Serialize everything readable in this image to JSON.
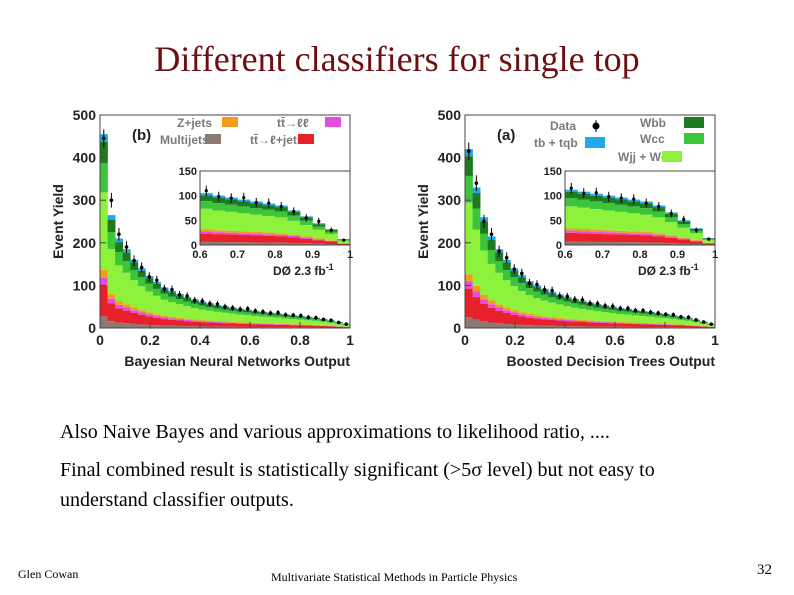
{
  "slide": {
    "title": "Different classifiers for single top",
    "text_line1": "Also Naive Bayes and various approximations to likelihood ratio, ....",
    "text_line2_pre": "Final combined result is statistically significant (>5",
    "text_line2_sigma": "σ",
    "text_line2_post": " level) but not easy to understand classifier outputs.",
    "footer_left": "Glen Cowan",
    "footer_center": "Multivariate Statistical Methods in Particle Physics",
    "page_number": "32"
  },
  "chart_data": [
    {
      "type": "bar",
      "stacked": true,
      "panel_label": "(b)",
      "xlabel": "Bayesian Neural Networks Output",
      "ylabel": "Event Yield",
      "xlim": [
        0,
        1
      ],
      "ylim": [
        0,
        500
      ],
      "yticks": [
        "0",
        "100",
        "200",
        "300",
        "400",
        "500"
      ],
      "xticks": [
        "0",
        "0.2",
        "0.4",
        "0.6",
        "0.8",
        "1"
      ],
      "lumi_label": "DØ  2.3 fb",
      "lumi_sup": "-1",
      "legend": [
        {
          "name": "Z+jets",
          "color": "#f39a1f"
        },
        {
          "name": "tt̄→ℓℓ",
          "color": "#e64ce0"
        },
        {
          "name": "Multijets",
          "color": "#8c7a72"
        },
        {
          "name": "tt̄→ℓ+jets",
          "color": "#e8202a"
        }
      ],
      "total_bkg_shape": [
        455,
        265,
        210,
        185,
        160,
        140,
        122,
        108,
        95,
        87,
        80,
        73,
        67,
        62,
        58,
        54,
        51,
        48,
        45,
        43,
        40,
        38,
        36,
        34,
        32,
        30,
        28,
        26,
        24,
        21,
        18,
        14,
        10
      ],
      "data_points": [
        445,
        300,
        220,
        190,
        158,
        142,
        120,
        112,
        92,
        90,
        78,
        75,
        65,
        63,
        57,
        56,
        50,
        47,
        44,
        45,
        40,
        38,
        35,
        36,
        31,
        30,
        29,
        25,
        24,
        20,
        18,
        13,
        9
      ],
      "inset": {
        "xlim": [
          0.6,
          1
        ],
        "ylim": [
          0,
          150
        ],
        "yticks": [
          "0",
          "50",
          "100",
          "150"
        ],
        "xticks": [
          "0.6",
          "0.7",
          "0.8",
          "0.9",
          "1"
        ],
        "total_bkg_shape": [
          105,
          100,
          96,
          92,
          88,
          84,
          80,
          70,
          58,
          44,
          32,
          12
        ],
        "data_points": [
          110,
          98,
          95,
          96,
          86,
          85,
          78,
          68,
          55,
          48,
          30,
          10
        ]
      }
    },
    {
      "type": "bar",
      "stacked": true,
      "panel_label": "(a)",
      "xlabel": "Boosted Decision Trees Output",
      "ylabel": "Event Yield",
      "xlim": [
        0,
        1
      ],
      "ylim": [
        0,
        500
      ],
      "yticks": [
        "0",
        "100",
        "200",
        "300",
        "400",
        "500"
      ],
      "xticks": [
        "0",
        "0.2",
        "0.4",
        "0.6",
        "0.8",
        "1"
      ],
      "lumi_label": "DØ  2.3 fb",
      "lumi_sup": "-1",
      "legend": [
        {
          "name": "Data",
          "color": "#000000"
        },
        {
          "name": "tb + tqb",
          "color": "#22a7e8"
        },
        {
          "name": "Wbb",
          "color": "#1f7a1f"
        },
        {
          "name": "Wcc",
          "color": "#3dc43d"
        },
        {
          "name": "Wjj + Wc",
          "color": "#8ef23c"
        }
      ],
      "total_bkg_shape": [
        420,
        330,
        260,
        215,
        185,
        160,
        140,
        124,
        110,
        100,
        92,
        85,
        79,
        73,
        68,
        64,
        60,
        56,
        53,
        50,
        47,
        45,
        42,
        40,
        38,
        35,
        33,
        30,
        27,
        24,
        20,
        15,
        10
      ],
      "data_points": [
        415,
        340,
        250,
        220,
        180,
        165,
        138,
        128,
        105,
        102,
        90,
        88,
        75,
        74,
        67,
        66,
        58,
        57,
        52,
        51,
        46,
        46,
        41,
        41,
        37,
        35,
        32,
        31,
        26,
        25,
        19,
        14,
        9
      ],
      "inset": {
        "xlim": [
          0.6,
          1
        ],
        "ylim": [
          0,
          150
        ],
        "yticks": [
          "0",
          "50",
          "100",
          "150"
        ],
        "xticks": [
          "0.6",
          "0.7",
          "0.8",
          "0.9",
          "1"
        ],
        "total_bkg_shape": [
          112,
          108,
          104,
          100,
          96,
          92,
          88,
          80,
          66,
          50,
          34,
          14
        ],
        "data_points": [
          115,
          105,
          106,
          98,
          95,
          93,
          85,
          78,
          64,
          52,
          30,
          12
        ]
      }
    }
  ],
  "component_fractions": [
    {
      "name": "Multijets",
      "color": "#8c7a72",
      "frac": 0.06
    },
    {
      "name": "tt̄→ℓ+jets",
      "color": "#e8202a",
      "frac": 0.16
    },
    {
      "name": "tt̄→ℓℓ",
      "color": "#e64ce0",
      "frac": 0.04
    },
    {
      "name": "Z+jets",
      "color": "#f39a1f",
      "frac": 0.04
    },
    {
      "name": "Wjj + Wc",
      "color": "#8ef23c",
      "frac": 0.4
    },
    {
      "name": "Wcc",
      "color": "#3dc43d",
      "frac": 0.15
    },
    {
      "name": "Wbb",
      "color": "#1f7a1f",
      "frac": 0.11
    },
    {
      "name": "tb + tqb",
      "color": "#22a7e8",
      "frac": 0.04
    }
  ]
}
